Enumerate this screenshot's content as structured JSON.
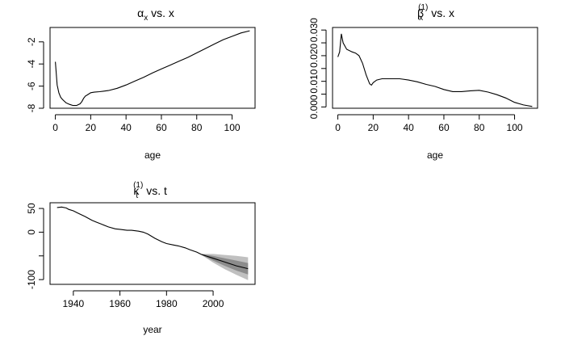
{
  "chart_data": [
    {
      "type": "line",
      "title": {
        "symbol": "α",
        "subscript": "x",
        "text": " vs. x"
      },
      "xlabel": "age",
      "ylabel": "",
      "xlim": [
        -3,
        113
      ],
      "ylim": [
        -8,
        -0.7
      ],
      "xticks": [
        0,
        20,
        40,
        60,
        80,
        100
      ],
      "yticks": [
        -8,
        -6,
        -4,
        -2
      ],
      "x": [
        0,
        1,
        2,
        3,
        4,
        5,
        6,
        8,
        10,
        12,
        14,
        15,
        16,
        17,
        18,
        20,
        22,
        25,
        30,
        35,
        40,
        45,
        50,
        55,
        60,
        65,
        70,
        75,
        80,
        85,
        90,
        95,
        100,
        105,
        110
      ],
      "y": [
        -3.8,
        -5.9,
        -6.6,
        -7.0,
        -7.2,
        -7.35,
        -7.5,
        -7.65,
        -7.75,
        -7.75,
        -7.6,
        -7.4,
        -7.1,
        -6.9,
        -6.8,
        -6.6,
        -6.55,
        -6.5,
        -6.4,
        -6.2,
        -5.9,
        -5.55,
        -5.2,
        -4.8,
        -4.45,
        -4.1,
        -3.75,
        -3.4,
        -3.0,
        -2.6,
        -2.2,
        -1.8,
        -1.5,
        -1.2,
        -1.0
      ]
    },
    {
      "type": "line",
      "title": {
        "symbol": "β",
        "subscript": "x",
        "superscript": "(1)",
        "text": " vs. x"
      },
      "xlabel": "age",
      "ylabel": "",
      "xlim": [
        -3,
        113
      ],
      "ylim": [
        -0.0005,
        0.031
      ],
      "xticks": [
        0,
        20,
        40,
        60,
        80,
        100
      ],
      "yticks": [
        0.0,
        0.005,
        0.01,
        0.015,
        0.02,
        0.025,
        0.03
      ],
      "ytick_labels": [
        "0.000",
        "",
        "0.010",
        "",
        "0.020",
        "",
        "0.030"
      ],
      "x": [
        0,
        1,
        2,
        3,
        5,
        8,
        10,
        12,
        14,
        16,
        18,
        19,
        20,
        22,
        25,
        30,
        35,
        40,
        45,
        50,
        55,
        60,
        65,
        70,
        75,
        80,
        85,
        90,
        95,
        100,
        105,
        110
      ],
      "y": [
        0.0195,
        0.0215,
        0.0285,
        0.025,
        0.0225,
        0.0215,
        0.021,
        0.02,
        0.017,
        0.0125,
        0.009,
        0.0085,
        0.0095,
        0.0105,
        0.011,
        0.011,
        0.011,
        0.0105,
        0.0098,
        0.0088,
        0.008,
        0.0068,
        0.006,
        0.006,
        0.0063,
        0.0065,
        0.0058,
        0.0048,
        0.0035,
        0.0018,
        0.0008,
        0.0002
      ]
    },
    {
      "type": "line",
      "title": {
        "symbol": "κ",
        "subscript": "t",
        "superscript": "(1)",
        "text": " vs. t"
      },
      "xlabel": "year",
      "ylabel": "",
      "xlim": [
        1930,
        2018
      ],
      "ylim": [
        -110,
        62
      ],
      "xticks": [
        1940,
        1960,
        1980,
        2000
      ],
      "yticks": [
        -100,
        -50,
        0,
        50
      ],
      "ytick_labels": [
        "-100",
        "",
        "0",
        "50"
      ],
      "x": [
        1933,
        1935,
        1937,
        1938,
        1940,
        1942,
        1945,
        1948,
        1950,
        1952,
        1955,
        1958,
        1960,
        1963,
        1965,
        1968,
        1970,
        1972,
        1975,
        1978,
        1980,
        1983,
        1985,
        1988,
        1990,
        1993,
        1995
      ],
      "y": [
        52,
        53,
        51,
        48,
        45,
        40,
        33,
        25,
        21,
        17,
        11,
        7,
        6,
        4,
        4,
        2,
        0,
        -4,
        -13,
        -20,
        -24,
        -27,
        -29,
        -33,
        -37,
        -42,
        -47
      ],
      "forecast": {
        "x": [
          1995,
          2000,
          2005,
          2010,
          2015
        ],
        "mean": [
          -47,
          -55,
          -63,
          -71,
          -77
        ],
        "inner_lower": [
          -48,
          -60,
          -71,
          -81,
          -89
        ],
        "inner_upper": [
          -46,
          -50,
          -55,
          -60,
          -65
        ],
        "outer_lower": [
          -48,
          -64,
          -78,
          -90,
          -101
        ],
        "outer_upper": [
          -46,
          -46,
          -48,
          -50,
          -53
        ]
      }
    }
  ]
}
